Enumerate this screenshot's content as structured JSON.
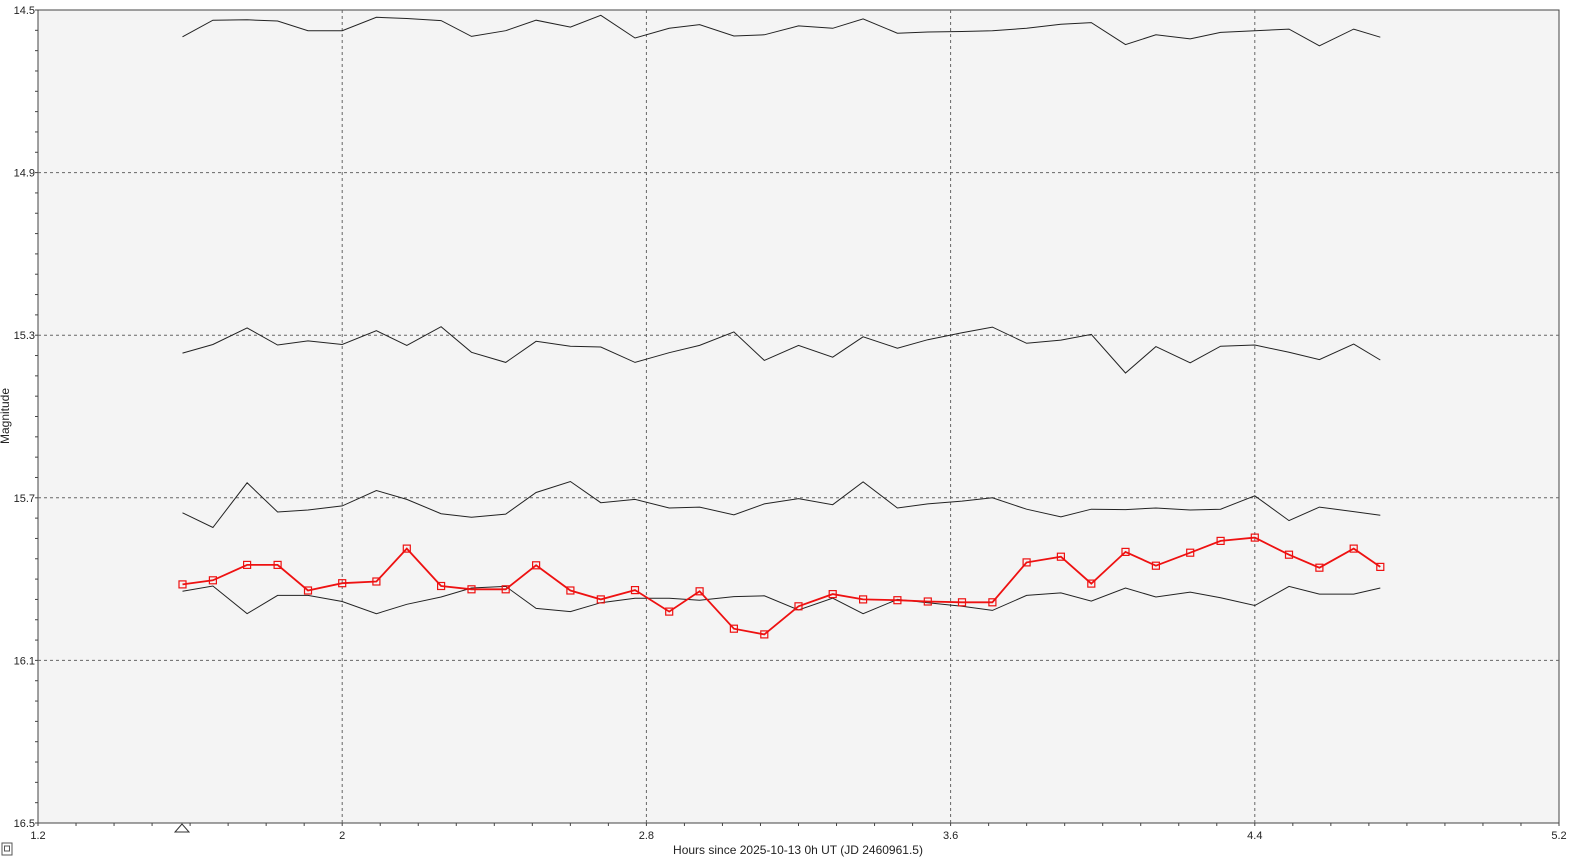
{
  "chart_data": {
    "type": "line",
    "xlabel": "Hours since 2025-10-13 0h UT (JD 2460961.5)",
    "ylabel": "Magnitude",
    "xlim": [
      1.2,
      5.2
    ],
    "ylim": [
      14.5,
      16.5
    ],
    "y_inverted": true,
    "grid": true,
    "x_ticks": [
      "1.2",
      "2",
      "2.8",
      "3.6",
      "4.4",
      "5.2"
    ],
    "y_ticks": [
      "14.5",
      "14.9",
      "15.3",
      "15.7",
      "16.1",
      "16.5"
    ],
    "colors": {
      "target": "#ee1111",
      "comparison": "#222222",
      "grid": "#666666",
      "background": "#f4f4f4"
    },
    "x": [
      1.58,
      1.66,
      1.75,
      1.83,
      1.91,
      2.0,
      2.09,
      2.17,
      2.26,
      2.34,
      2.43,
      2.51,
      2.6,
      2.68,
      2.77,
      2.86,
      2.94,
      3.03,
      3.11,
      3.2,
      3.29,
      3.37,
      3.46,
      3.54,
      3.63,
      3.71,
      3.8,
      3.89,
      3.97,
      4.06,
      4.14,
      4.23,
      4.31,
      4.4,
      4.49,
      4.57,
      4.66,
      4.73
    ],
    "series": [
      {
        "role": "comparison",
        "values": [
          14.566,
          14.525,
          14.524,
          14.527,
          14.551,
          14.551,
          14.518,
          14.521,
          14.526,
          14.565,
          14.551,
          14.525,
          14.542,
          14.513,
          14.569,
          14.545,
          14.536,
          14.564,
          14.561,
          14.539,
          14.545,
          14.522,
          14.557,
          14.554,
          14.553,
          14.551,
          14.545,
          14.535,
          14.531,
          14.585,
          14.561,
          14.571,
          14.555,
          14.551,
          14.547,
          14.588,
          14.547,
          14.567
        ]
      },
      {
        "role": "comparison",
        "values": [
          15.344,
          15.323,
          15.282,
          15.324,
          15.314,
          15.323,
          15.289,
          15.325,
          15.279,
          15.342,
          15.367,
          15.315,
          15.327,
          15.329,
          15.367,
          15.343,
          15.325,
          15.292,
          15.362,
          15.325,
          15.354,
          15.304,
          15.332,
          15.311,
          15.294,
          15.28,
          15.32,
          15.312,
          15.298,
          15.393,
          15.328,
          15.368,
          15.327,
          15.324,
          15.342,
          15.36,
          15.322,
          15.361
        ]
      },
      {
        "role": "comparison",
        "values": [
          15.737,
          15.773,
          15.663,
          15.735,
          15.73,
          15.72,
          15.682,
          15.704,
          15.739,
          15.748,
          15.74,
          15.687,
          15.66,
          15.712,
          15.704,
          15.725,
          15.723,
          15.742,
          15.715,
          15.702,
          15.717,
          15.661,
          15.725,
          15.715,
          15.708,
          15.7,
          15.728,
          15.747,
          15.728,
          15.729,
          15.725,
          15.73,
          15.728,
          15.695,
          15.756,
          15.723,
          15.734,
          15.743
        ]
      },
      {
        "role": "comparison",
        "values": [
          15.93,
          15.917,
          15.985,
          15.94,
          15.94,
          15.955,
          15.985,
          15.962,
          15.944,
          15.922,
          15.918,
          15.972,
          15.98,
          15.958,
          15.947,
          15.947,
          15.952,
          15.943,
          15.941,
          15.976,
          15.947,
          15.985,
          15.95,
          15.958,
          15.967,
          15.977,
          15.94,
          15.934,
          15.954,
          15.922,
          15.944,
          15.932,
          15.946,
          15.965,
          15.918,
          15.937,
          15.937,
          15.922
        ]
      },
      {
        "role": "target",
        "values": [
          15.913,
          15.903,
          15.865,
          15.865,
          15.928,
          15.91,
          15.906,
          15.825,
          15.917,
          15.925,
          15.925,
          15.866,
          15.928,
          15.95,
          15.927,
          15.98,
          15.93,
          16.022,
          16.036,
          15.967,
          15.937,
          15.95,
          15.952,
          15.955,
          15.957,
          15.957,
          15.859,
          15.845,
          15.911,
          15.833,
          15.867,
          15.835,
          15.806,
          15.798,
          15.84,
          15.872,
          15.825,
          15.87
        ]
      }
    ]
  }
}
